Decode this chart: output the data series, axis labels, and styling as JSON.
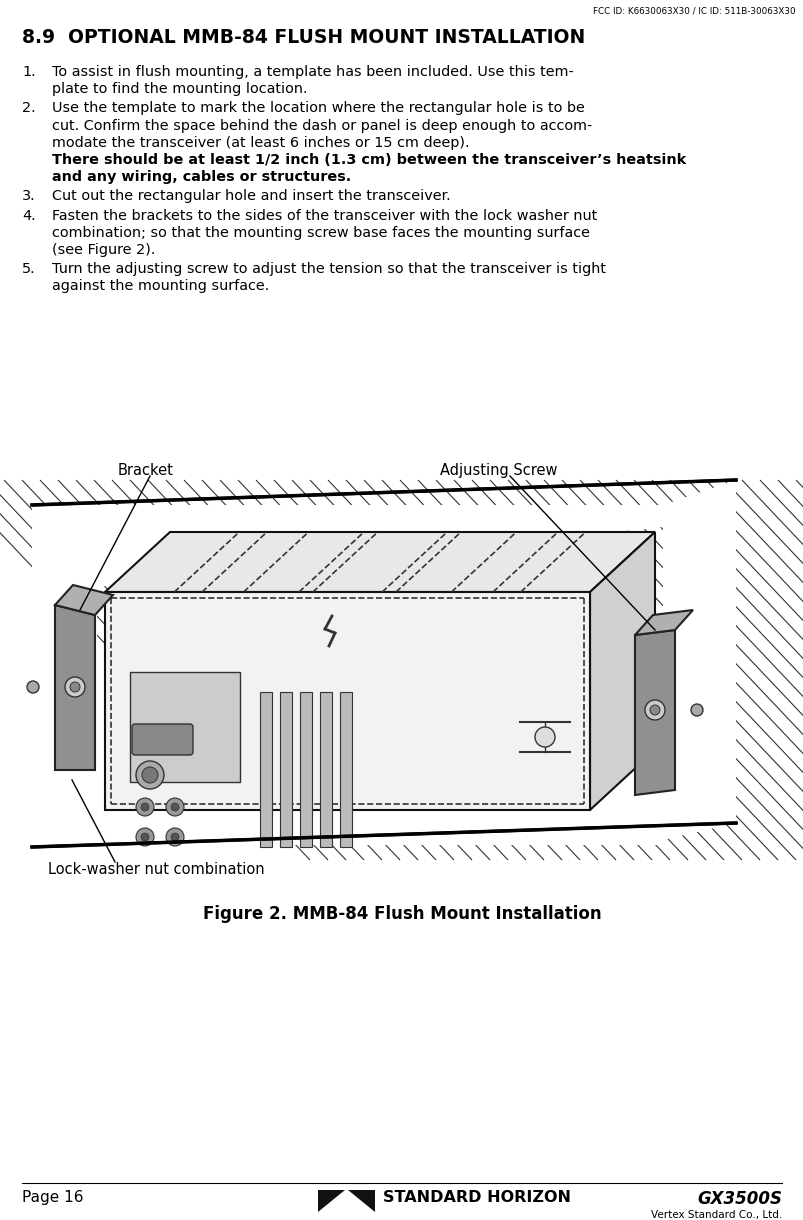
{
  "fcc_header": "FCC ID: K6630063X30 / IC ID: 511B-30063X30",
  "section_title": "8.9  OPTIONAL MMB-84 FLUSH MOUNT INSTALLATION",
  "items": [
    {
      "num": "1.",
      "lines": [
        "To assist in flush mounting, a template has been included. Use this tem-",
        "plate to find the mounting location."
      ]
    },
    {
      "num": "2.",
      "lines": [
        "Use the template to mark the location where the rectangular hole is to be",
        "cut. Confirm the space behind the dash or panel is deep enough to accom-",
        "modate the transceiver (at least 6 inches or 15 cm deep).",
        "There should be at least 1/2 inch (1.3 cm) between the transceiver’s heatsink",
        "and any wiring, cables or structures."
      ],
      "line_bold": [
        false,
        false,
        false,
        true,
        true
      ]
    },
    {
      "num": "3.",
      "lines": [
        "Cut out the rectangular hole and insert the transceiver."
      ]
    },
    {
      "num": "4.",
      "lines": [
        "Fasten the brackets to the sides of the transceiver with the lock washer nut",
        "combination; so that the mounting screw base faces the mounting surface",
        "(see Figure 2)."
      ]
    },
    {
      "num": "5.",
      "lines": [
        "Turn the adjusting screw to adjust the tension so that the transceiver is tight",
        "against the mounting surface."
      ]
    }
  ],
  "label_bracket": "Bracket",
  "label_adj_screw": "Adjusting Screw",
  "label_lock_washer": "Lock-washer nut combination",
  "figure_caption": "Figure 2. MMB-84 Flush Mount Installation",
  "footer_left": "Page 16",
  "footer_center": "STANDARD HORIZON",
  "footer_right": "GX3500S",
  "footer_bottom": "Vertex Standard Co., Ltd.",
  "bg_color": "#ffffff",
  "text_color": "#000000",
  "panel_hatch_color": "#888888",
  "line_color": "#222222",
  "body_color": "#f0f0f0",
  "bracket_color": "#888888"
}
